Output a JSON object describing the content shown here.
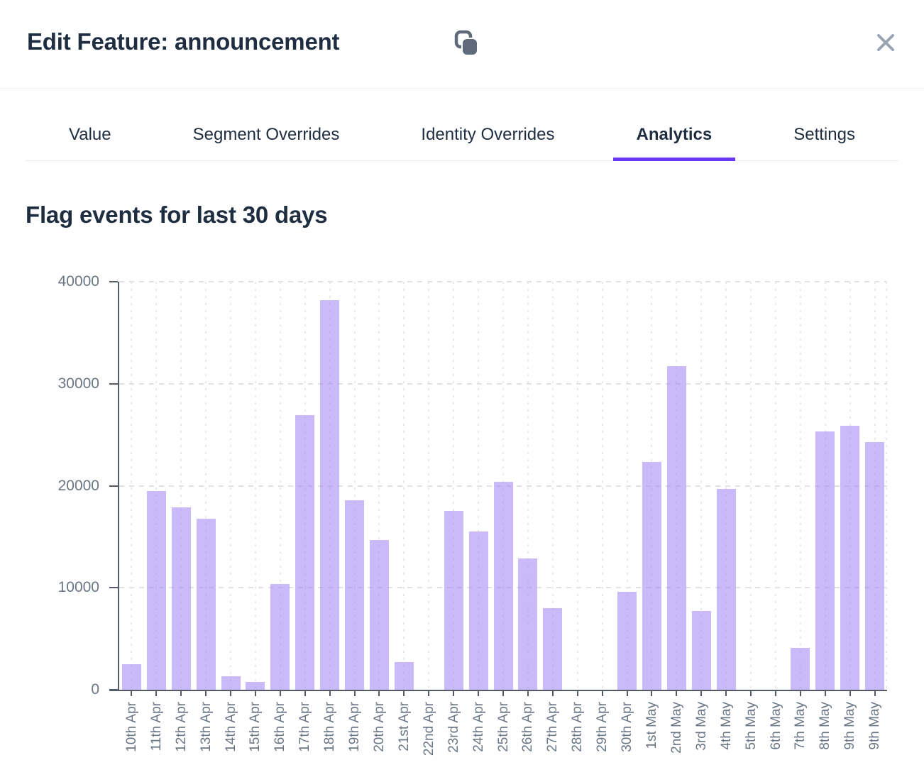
{
  "modal": {
    "title": "Edit Feature: announcement",
    "copy_icon": "copy-icon",
    "close_icon": "close-icon"
  },
  "tabs": [
    {
      "label": "Value",
      "active": false
    },
    {
      "label": "Segment Overrides",
      "active": false
    },
    {
      "label": "Identity Overrides",
      "active": false
    },
    {
      "label": "Analytics",
      "active": true
    },
    {
      "label": "Settings",
      "active": false
    }
  ],
  "heading": "Flag events for last 30 days",
  "chart_data": {
    "type": "bar",
    "title": "Flag events for last 30 days",
    "categories": [
      "10th Apr",
      "11th Apr",
      "12th Apr",
      "13th Apr",
      "14th Apr",
      "15th Apr",
      "16th Apr",
      "17th Apr",
      "18th Apr",
      "19th Apr",
      "20th Apr",
      "21st Apr",
      "22nd Apr",
      "23rd Apr",
      "24th Apr",
      "25th Apr",
      "26th Apr",
      "27th Apr",
      "28th Apr",
      "29th Apr",
      "30th Apr",
      "1st May",
      "2nd May",
      "3rd May",
      "4th May",
      "5th May",
      "6th May",
      "7th May",
      "8th May",
      "9th May",
      "9th May"
    ],
    "values": [
      2500,
      19500,
      17900,
      16800,
      1300,
      750,
      10400,
      26900,
      38200,
      18600,
      14700,
      2700,
      0,
      17500,
      15500,
      20400,
      12900,
      8000,
      0,
      0,
      9600,
      22300,
      31700,
      7700,
      19700,
      0,
      0,
      4100,
      25300,
      25900,
      24300
    ],
    "xlabel": "",
    "ylabel": "",
    "ylim": [
      0,
      40000
    ],
    "yticks": [
      0,
      10000,
      20000,
      30000,
      40000
    ],
    "grid": true,
    "legend": false
  },
  "colors": {
    "accent": "#6837fc",
    "bar": "#c9b7f9",
    "bar_rgba": "rgba(151,117,245,0.5)",
    "axis": "#545b64",
    "grid_h": "#e2e2e2",
    "grid_v": "#eae8ec",
    "text_dark": "#1f2d40",
    "text_axis": "#6a7585",
    "icon_gray": "#5f6b7a",
    "close_gray": "#9aa4b2"
  }
}
